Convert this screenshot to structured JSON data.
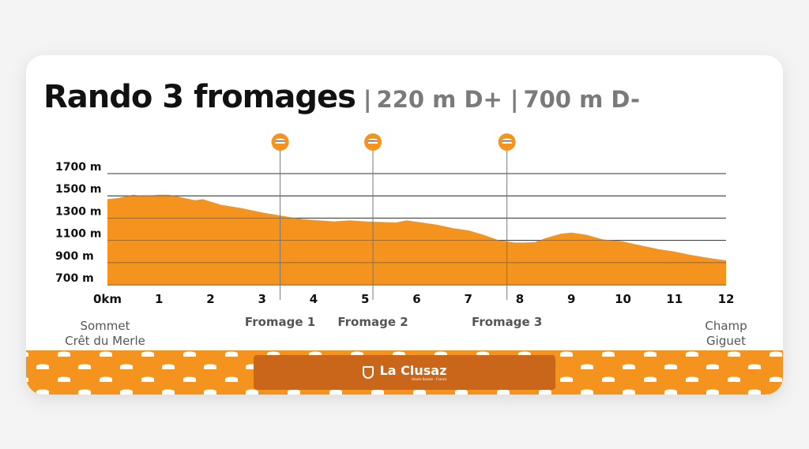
{
  "header": {
    "title": "Rando 3 fromages",
    "separator": "|",
    "ascent": "220 m D+",
    "descent": "700 m D-"
  },
  "colors": {
    "profile_fill": "#f5931f",
    "marker_fill": "#f5931f",
    "banner_bg": "#f5931f",
    "logo_bg": "#c9661a",
    "gridline": "#333333",
    "marker_line": "#777777"
  },
  "icons": {
    "marker": "cheese-icon",
    "banner_pattern": "cheese-icon",
    "logo": "shield-icon"
  },
  "chart_data": {
    "type": "area",
    "title": "Rando 3 fromages",
    "xlabel": "",
    "ylabel": "",
    "grid": true,
    "x_unit": "km",
    "y_unit": "m",
    "xlim": [
      0,
      12
    ],
    "ylim": [
      700,
      1700
    ],
    "y_ticks": [
      {
        "value": 1700,
        "label": "1700 m"
      },
      {
        "value": 1500,
        "label": "1500 m"
      },
      {
        "value": 1300,
        "label": "1300 m"
      },
      {
        "value": 1100,
        "label": "1100 m"
      },
      {
        "value": 900,
        "label": "900 m"
      },
      {
        "value": 700,
        "label": "700 m"
      }
    ],
    "x_ticks": [
      {
        "value": 0,
        "label": "0km"
      },
      {
        "value": 1,
        "label": "1"
      },
      {
        "value": 2,
        "label": "2"
      },
      {
        "value": 3,
        "label": "3"
      },
      {
        "value": 4,
        "label": "4"
      },
      {
        "value": 5,
        "label": "5"
      },
      {
        "value": 6,
        "label": "6"
      },
      {
        "value": 7,
        "label": "7"
      },
      {
        "value": 8,
        "label": "8"
      },
      {
        "value": 9,
        "label": "9"
      },
      {
        "value": 10,
        "label": "10"
      },
      {
        "value": 11,
        "label": "11"
      },
      {
        "value": 12,
        "label": "12"
      }
    ],
    "series": [
      {
        "x": [
          0,
          0.2,
          0.5,
          0.7,
          1.0,
          1.2,
          1.4,
          1.7,
          1.85,
          2.2,
          2.6,
          3.0,
          3.4,
          3.8,
          4.1,
          4.4,
          4.7,
          5.0,
          5.3,
          5.6,
          5.8,
          6.1,
          6.4,
          6.7,
          7.0,
          7.3,
          7.6,
          7.9,
          8.1,
          8.3,
          8.5,
          8.8,
          9.0,
          9.3,
          9.6,
          10.0,
          10.4,
          10.7,
          11.0,
          11.3,
          11.7,
          12.0
        ],
        "y": [
          1470,
          1480,
          1510,
          1500,
          1510,
          1510,
          1490,
          1460,
          1470,
          1420,
          1390,
          1350,
          1320,
          1290,
          1280,
          1270,
          1280,
          1270,
          1265,
          1260,
          1280,
          1260,
          1240,
          1210,
          1190,
          1150,
          1100,
          1080,
          1080,
          1085,
          1120,
          1160,
          1170,
          1150,
          1110,
          1090,
          1050,
          1020,
          1000,
          970,
          940,
          920
        ]
      }
    ],
    "markers": [
      {
        "x": 3.35,
        "label": "Fromage 1"
      },
      {
        "x": 5.15,
        "label": "Fromage 2"
      },
      {
        "x": 7.75,
        "label": "Fromage 3"
      }
    ],
    "endpoints": {
      "start": [
        "Sommet",
        "Crêt du Merle"
      ],
      "end": [
        "Champ",
        "Giguet"
      ]
    }
  },
  "banner": {
    "logo_text": "La Clusaz",
    "logo_tagline": "Haute-Savoie - France"
  }
}
